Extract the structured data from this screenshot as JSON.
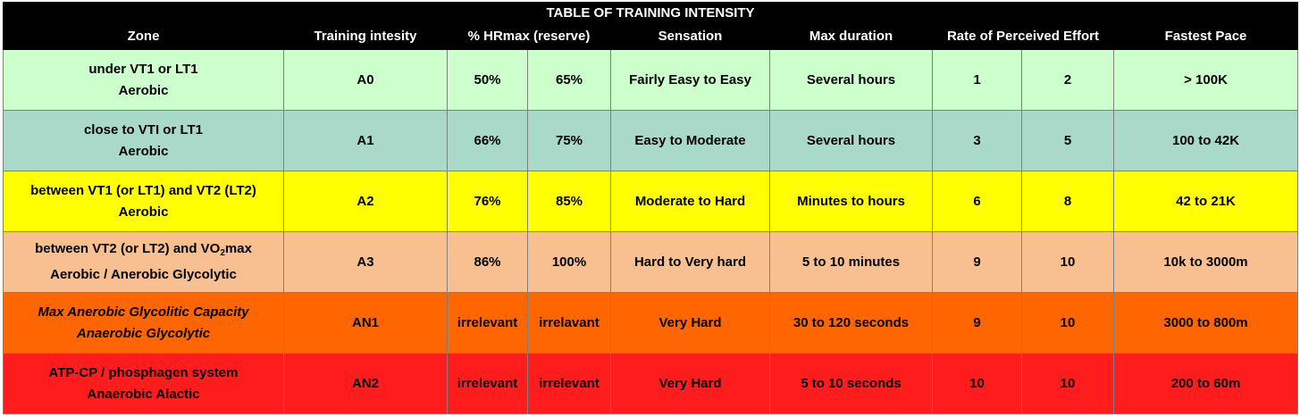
{
  "title": "TABLE OF TRAINING INTENSITY",
  "headers": {
    "zone": "Zone",
    "intensity": "Training intesity",
    "hr": "% HRmax (reserve)",
    "sensation": "Sensation",
    "duration": "Max duration",
    "rpe": "Rate of Perceived Effort",
    "pace": "Fastest Pace"
  },
  "rows": [
    {
      "zone_line1": "under VT1 or LT1",
      "zone_line2": "Aerobic",
      "level": "A0",
      "hr_low": "50%",
      "hr_high": "65%",
      "sensation": "Fairly Easy to Easy",
      "duration": "Several hours",
      "rpe_low": "1",
      "rpe_high": "2",
      "pace": "> 100K",
      "color": "#ccffcc"
    },
    {
      "zone_line1": "close to VTI or LT1",
      "zone_line2": "Aerobic",
      "level": "A1",
      "hr_low": "66%",
      "hr_high": "75%",
      "sensation": "Easy to Moderate",
      "duration": "Several hours",
      "rpe_low": "3",
      "rpe_high": "5",
      "pace": "100 to 42K",
      "color": "#a9d9c9"
    },
    {
      "zone_line1": "between VT1 (or LT1) and VT2 (LT2)",
      "zone_line2": "Aerobic",
      "level": "A2",
      "hr_low": "76%",
      "hr_high": "85%",
      "sensation": "Moderate to Hard",
      "duration": "Minutes to hours",
      "rpe_low": "6",
      "rpe_high": "8",
      "pace": "42 to 21K",
      "color": "#ffff00"
    },
    {
      "zone_line1_pre": "between VT2 (or LT2) and VO",
      "zone_line1_sub": "2",
      "zone_line1_post": "max",
      "zone_line2": "Aerobic / Anerobic Glycolytic",
      "level": "A3",
      "hr_low": "86%",
      "hr_high": "100%",
      "sensation": "Hard to Very hard",
      "duration": "5 to 10 minutes",
      "rpe_low": "9",
      "rpe_high": "10",
      "pace": "10k to 3000m",
      "color": "#f8bf90"
    },
    {
      "zone_line1": "Max Anerobic Glycolitic Capacity",
      "zone_line2": "Anaerobic Glycolytic",
      "level": "AN1",
      "hr_low": "irrelevant",
      "hr_high": "irrelavant",
      "sensation": "Very Hard",
      "duration": "30 to 120 seconds",
      "rpe_low": "9",
      "rpe_high": "10",
      "pace": "3000 to 800m",
      "color": "#ff6600"
    },
    {
      "zone_line1": "ATP-CP / phosphagen system",
      "zone_line2": "Anaerobic Alactic",
      "level": "AN2",
      "hr_low": "irrelevant",
      "hr_high": "irrelevant",
      "sensation": "Very Hard",
      "duration": "5 to 10 seconds",
      "rpe_low": "10",
      "rpe_high": "10",
      "pace": "200 to 60m",
      "color": "#ff1c1c"
    }
  ]
}
